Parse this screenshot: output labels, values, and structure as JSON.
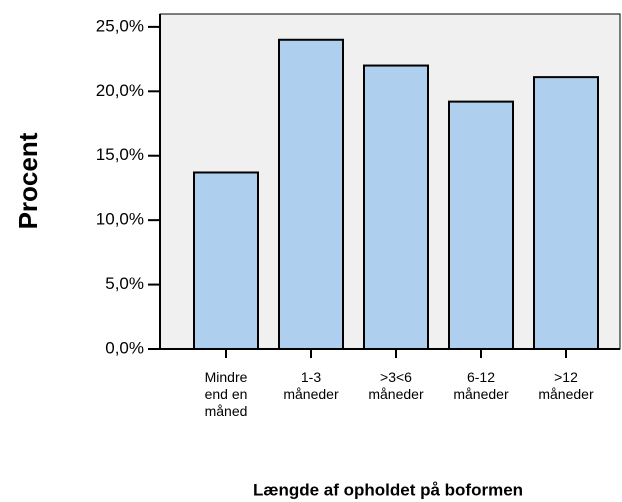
{
  "chart_data": {
    "type": "bar",
    "x_label": "Længde af opholdet på boformen",
    "y_label": "Procent",
    "categories": [
      "Mindre end en måned",
      "1-3 måneder",
      ">3<6 måneder",
      "6-12 måneder",
      ">12 måneder"
    ],
    "values": [
      13.7,
      24.0,
      22.0,
      19.2,
      21.1
    ],
    "color": "#aecfee",
    "ylim": [
      0,
      26
    ],
    "yticks": [
      {
        "value": 0,
        "label": "0,0%"
      },
      {
        "value": 5,
        "label": "5,0%"
      },
      {
        "value": 10,
        "label": "10,0%"
      },
      {
        "value": 15,
        "label": "15,0%"
      },
      {
        "value": 20,
        "label": "20,0%"
      },
      {
        "value": 25,
        "label": "25,0%"
      }
    ],
    "grid": false
  }
}
